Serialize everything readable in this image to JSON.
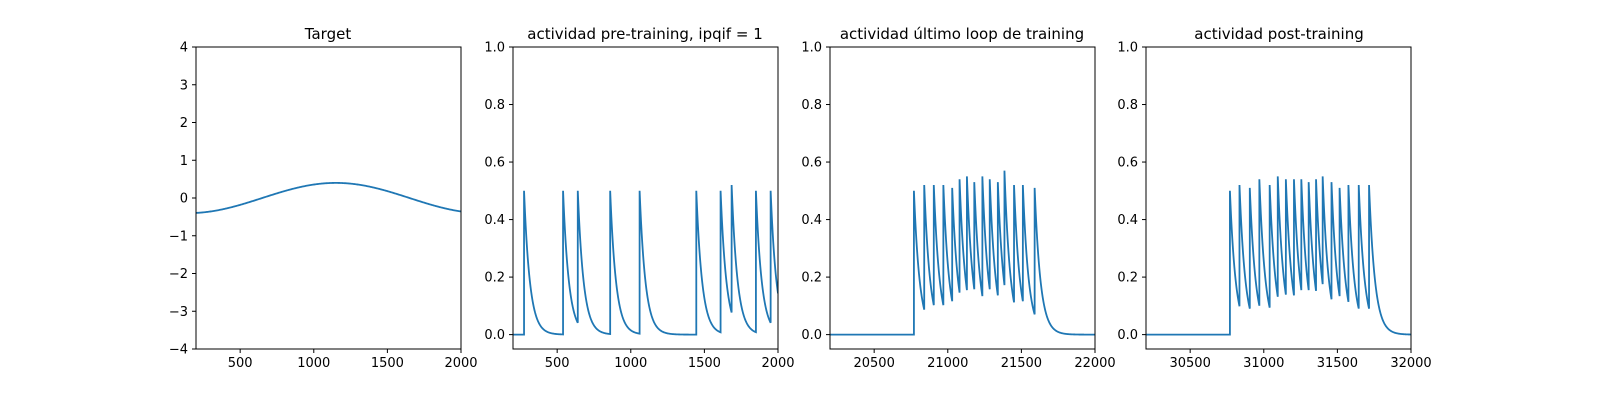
{
  "colors": {
    "line": "#1f77b4",
    "axis": "#000000",
    "background": "#ffffff"
  },
  "chart_data": [
    {
      "type": "line",
      "title": "Target",
      "xlabel": "",
      "ylabel": "",
      "xlim": [
        200,
        2000
      ],
      "ylim": [
        -4,
        4
      ],
      "xticks": [
        500,
        1000,
        1500,
        2000
      ],
      "yticks": [
        -4,
        -3,
        -2,
        -1,
        0,
        1,
        2,
        3,
        4
      ],
      "grid": false,
      "series": [
        {
          "kind": "sine",
          "amplitude": 0.4,
          "peak_x": 1150,
          "period": 2000,
          "x_start": 200,
          "x_end": 2000
        }
      ]
    },
    {
      "type": "line",
      "title": "actividad pre-training, ipqif = 1",
      "xlabel": "",
      "ylabel": "",
      "xlim": [
        200,
        2000
      ],
      "ylim": [
        -0.05,
        1.0
      ],
      "xticks": [
        500,
        1000,
        1500,
        2000
      ],
      "yticks": [
        0.0,
        0.2,
        0.4,
        0.6,
        0.8,
        1.0
      ],
      "grid": false,
      "series": [
        {
          "kind": "spikes",
          "x_start": 200,
          "x_end": 2000,
          "decay": 40,
          "spike_times": [
            275,
            540,
            640,
            860,
            1060,
            1445,
            1610,
            1685,
            1850,
            1950
          ],
          "spike_peaks": [
            0.5,
            0.5,
            0.5,
            0.5,
            0.5,
            0.5,
            0.5,
            0.52,
            0.5,
            0.5
          ]
        }
      ]
    },
    {
      "type": "line",
      "title": "actividad último loop de training",
      "xlabel": "",
      "ylabel": "",
      "xlim": [
        20200,
        22000
      ],
      "ylim": [
        -0.05,
        1.0
      ],
      "xticks": [
        20500,
        21000,
        21500,
        22000
      ],
      "yticks": [
        0.0,
        0.2,
        0.4,
        0.6,
        0.8,
        1.0
      ],
      "grid": false,
      "series": [
        {
          "kind": "spikes",
          "x_start": 20200,
          "x_end": 22000,
          "decay": 40,
          "spike_times": [
            20770,
            20840,
            20905,
            20970,
            21030,
            21080,
            21130,
            21180,
            21235,
            21285,
            21340,
            21385,
            21450,
            21510,
            21590
          ],
          "spike_peaks": [
            0.5,
            0.52,
            0.52,
            0.52,
            0.51,
            0.54,
            0.55,
            0.53,
            0.55,
            0.54,
            0.53,
            0.57,
            0.52,
            0.52,
            0.51
          ]
        }
      ]
    },
    {
      "type": "line",
      "title": "actividad post-training",
      "xlabel": "",
      "ylabel": "",
      "xlim": [
        30200,
        32000
      ],
      "ylim": [
        -0.05,
        1.0
      ],
      "xticks": [
        30500,
        31000,
        31500,
        32000
      ],
      "yticks": [
        0.0,
        0.2,
        0.4,
        0.6,
        0.8,
        1.0
      ],
      "grid": false,
      "series": [
        {
          "kind": "spikes",
          "x_start": 30200,
          "x_end": 32000,
          "decay": 40,
          "spike_times": [
            30770,
            30835,
            30905,
            30970,
            31040,
            31095,
            31150,
            31205,
            31255,
            31305,
            31355,
            31400,
            31460,
            31515,
            31575,
            31645,
            31715
          ],
          "spike_peaks": [
            0.5,
            0.52,
            0.51,
            0.54,
            0.52,
            0.55,
            0.54,
            0.54,
            0.54,
            0.53,
            0.54,
            0.55,
            0.53,
            0.51,
            0.52,
            0.52,
            0.52
          ]
        }
      ]
    }
  ]
}
